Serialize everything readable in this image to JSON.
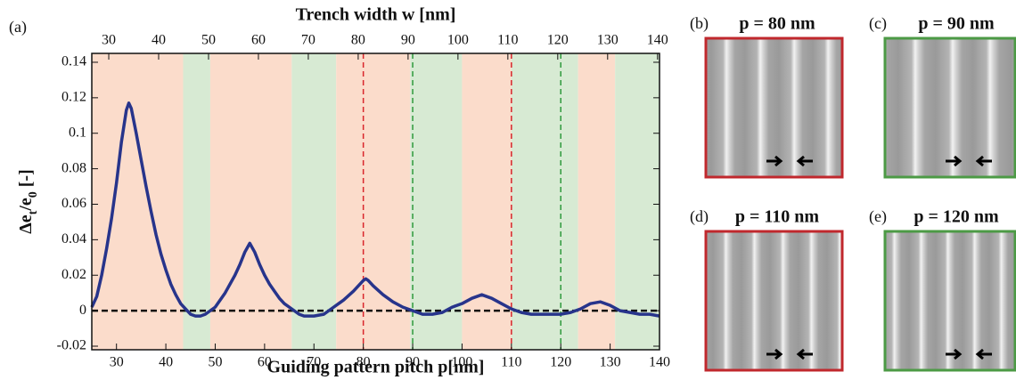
{
  "chart_data": {
    "type": "line",
    "panel_label": "(a)",
    "title": "Trench width w [nm]",
    "xlabel": "Guiding pattern pitch p[nm]",
    "ylabel_parts": [
      {
        "text": "Δe"
      },
      {
        "text": "t",
        "sub": true
      },
      {
        "text": "/e"
      },
      {
        "text": "0",
        "sub": true
      },
      {
        "text": " [-]"
      }
    ],
    "xlim": [
      25,
      140
    ],
    "xticks": [
      30,
      40,
      50,
      60,
      70,
      80,
      90,
      100,
      110,
      120,
      130,
      140
    ],
    "x2lim": [
      26.6,
      140.4
    ],
    "x2ticks": [
      30,
      40,
      50,
      60,
      70,
      80,
      90,
      100,
      110,
      120,
      130,
      140
    ],
    "ylim": [
      -0.022,
      0.145
    ],
    "yticks": [
      0.14,
      0.12,
      0.1,
      0.08,
      0.06,
      0.04,
      0.02,
      0,
      -0.02
    ],
    "bands": [
      {
        "from": 25,
        "to": 43.5,
        "color": "#fbdccb"
      },
      {
        "from": 43.5,
        "to": 49,
        "color": "#d7ead3"
      },
      {
        "from": 49,
        "to": 65.5,
        "color": "#fbdccb"
      },
      {
        "from": 65.5,
        "to": 74.5,
        "color": "#d7ead3"
      },
      {
        "from": 74.5,
        "to": 89.5,
        "color": "#fbdccb"
      },
      {
        "from": 89.5,
        "to": 100,
        "color": "#d7ead3"
      },
      {
        "from": 100,
        "to": 110,
        "color": "#fbdccb"
      },
      {
        "from": 110,
        "to": 123.5,
        "color": "#d7ead3"
      },
      {
        "from": 123.5,
        "to": 131,
        "color": "#fbdccb"
      },
      {
        "from": 131,
        "to": 140,
        "color": "#d7ead3"
      }
    ],
    "vlines": [
      {
        "x": 80,
        "color": "#d9262c"
      },
      {
        "x": 90,
        "color": "#2e9a3c"
      },
      {
        "x": 110,
        "color": "#d9262c"
      },
      {
        "x": 120,
        "color": "#2e9a3c"
      }
    ],
    "hline": {
      "y": 0,
      "color": "#111111"
    },
    "x": [
      25,
      26,
      27,
      28,
      29,
      30,
      31,
      32,
      32.5,
      33,
      34,
      35,
      36,
      37,
      38,
      39,
      40,
      41,
      42,
      43,
      44,
      45,
      46,
      47,
      48,
      50,
      52,
      54,
      55,
      56,
      57,
      58,
      59,
      60,
      61,
      62,
      63,
      64,
      65,
      66,
      67,
      68,
      70,
      72,
      74,
      76,
      78,
      79,
      80,
      80.5,
      81,
      82,
      84,
      86,
      88,
      90,
      92,
      94,
      96,
      98,
      100,
      102,
      104,
      106,
      108,
      110,
      112,
      114,
      116,
      118,
      120,
      122,
      124,
      126,
      128,
      130,
      132,
      134,
      136,
      138,
      140
    ],
    "series": [
      {
        "color": "#27348b",
        "values": [
          0.002,
          0.008,
          0.02,
          0.035,
          0.052,
          0.072,
          0.095,
          0.113,
          0.117,
          0.114,
          0.1,
          0.085,
          0.07,
          0.056,
          0.043,
          0.032,
          0.023,
          0.015,
          0.009,
          0.004,
          0.001,
          -0.002,
          -0.003,
          -0.003,
          -0.002,
          0.002,
          0.01,
          0.02,
          0.026,
          0.033,
          0.038,
          0.033,
          0.026,
          0.02,
          0.015,
          0.011,
          0.007,
          0.004,
          0.002,
          0,
          -0.002,
          -0.003,
          -0.003,
          -0.002,
          0.002,
          0.006,
          0.011,
          0.014,
          0.017,
          0.018,
          0.017,
          0.014,
          0.009,
          0.005,
          0.002,
          0,
          -0.002,
          -0.002,
          -0.001,
          0.002,
          0.004,
          0.007,
          0.009,
          0.007,
          0.004,
          0.001,
          -0.001,
          -0.002,
          -0.002,
          -0.002,
          -0.002,
          -0.001,
          0.001,
          0.004,
          0.005,
          0.003,
          0,
          -0.001,
          -0.002,
          -0.002,
          -0.003
        ]
      }
    ],
    "panels": [
      {
        "label": "(b)",
        "title": "p = 80 nm",
        "border": "#c0282d"
      },
      {
        "label": "(c)",
        "title": "p = 90 nm",
        "border": "#4c9a45"
      },
      {
        "label": "(d)",
        "title": "p = 110 nm",
        "border": "#c0282d"
      },
      {
        "label": "(e)",
        "title": "p = 120 nm",
        "border": "#4c9a45"
      }
    ]
  }
}
